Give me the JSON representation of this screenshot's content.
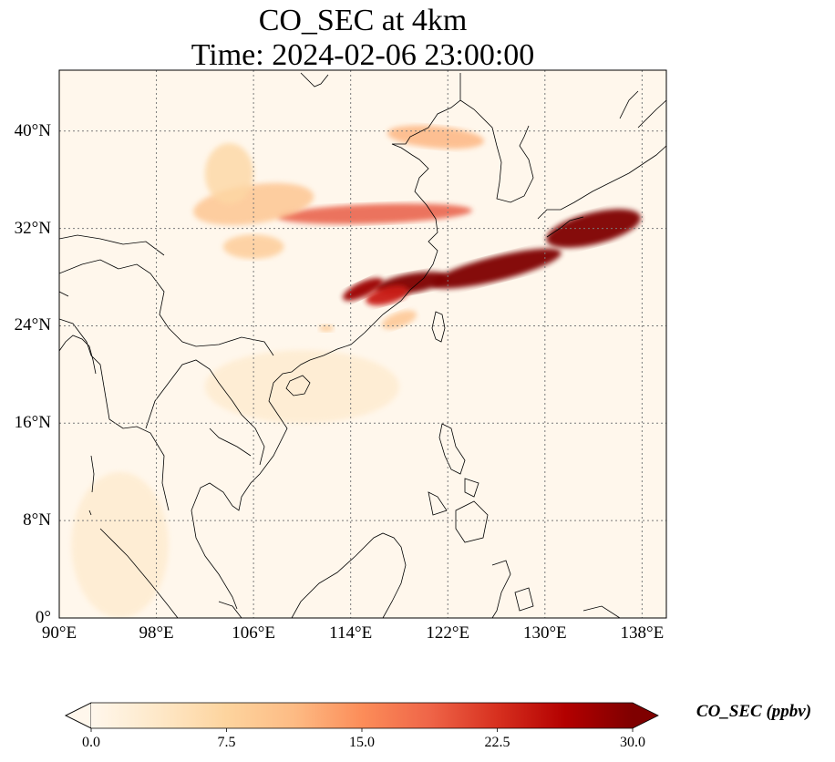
{
  "title": {
    "line1": "CO_SEC at 4km",
    "line2": "Time: 2024-02-06 23:00:00"
  },
  "map": {
    "extent": {
      "lon": [
        90,
        140
      ],
      "lat": [
        0,
        45
      ]
    },
    "lat_ticks": [
      {
        "value": 40,
        "label": "40°N"
      },
      {
        "value": 32,
        "label": "32°N"
      },
      {
        "value": 24,
        "label": "24°N"
      },
      {
        "value": 16,
        "label": "16°N"
      },
      {
        "value": 8,
        "label": "8°N"
      },
      {
        "value": 0,
        "label": "0°"
      }
    ],
    "lon_ticks": [
      {
        "value": 90,
        "label": "90°E"
      },
      {
        "value": 98,
        "label": "98°E"
      },
      {
        "value": 106,
        "label": "106°E"
      },
      {
        "value": 114,
        "label": "114°E"
      },
      {
        "value": 122,
        "label": "122°E"
      },
      {
        "value": 130,
        "label": "130°E"
      },
      {
        "value": 138,
        "label": "138°E"
      }
    ],
    "gridlines": true,
    "colormap": "OrRd",
    "plumes": [
      {
        "lon": 134,
        "lat": 32.0,
        "value": 30,
        "sx": 4.0,
        "sy": 1.3,
        "rot": -14
      },
      {
        "lon": 126,
        "lat": 28.7,
        "value": 30,
        "sx": 5.5,
        "sy": 1.0,
        "rot": -14
      },
      {
        "lon": 119,
        "lat": 27.5,
        "value": 30,
        "sx": 3.0,
        "sy": 0.8,
        "rot": -10
      },
      {
        "lon": 115,
        "lat": 27.0,
        "value": 28,
        "sx": 1.8,
        "sy": 0.6,
        "rot": -25
      },
      {
        "lon": 117,
        "lat": 26.5,
        "value": 24,
        "sx": 1.8,
        "sy": 0.7,
        "rot": -15
      },
      {
        "lon": 116,
        "lat": 33.2,
        "value": 20,
        "sx": 8.0,
        "sy": 0.8,
        "rot": -2
      },
      {
        "lon": 106,
        "lat": 34.0,
        "value": 10,
        "sx": 5.0,
        "sy": 1.6,
        "rot": -8
      },
      {
        "lon": 104,
        "lat": 36.5,
        "value": 7,
        "sx": 2.0,
        "sy": 2.5,
        "rot": 0
      },
      {
        "lon": 106,
        "lat": 30.5,
        "value": 9,
        "sx": 2.5,
        "sy": 1.0,
        "rot": 0
      },
      {
        "lon": 121,
        "lat": 39.5,
        "value": 12,
        "sx": 4.0,
        "sy": 0.9,
        "rot": 5
      },
      {
        "lon": 118,
        "lat": 24.5,
        "value": 10,
        "sx": 1.5,
        "sy": 0.6,
        "rot": -20
      },
      {
        "lon": 112,
        "lat": 23.8,
        "value": 9,
        "sx": 0.6,
        "sy": 0.3,
        "rot": 0
      },
      {
        "lon": 110,
        "lat": 19.0,
        "value": 3,
        "sx": 8.0,
        "sy": 3.0,
        "rot": 0
      },
      {
        "lon": 95,
        "lat": 6.0,
        "value": 3,
        "sx": 4.0,
        "sy": 6.0,
        "rot": 0
      }
    ]
  },
  "colorbar": {
    "label": "CO_SEC (ppbv)",
    "min": 0,
    "max": 30,
    "ticks": [
      {
        "value": 0,
        "label": "0.0"
      },
      {
        "value": 7.5,
        "label": "7.5"
      },
      {
        "value": 15,
        "label": "15.0"
      },
      {
        "value": 22.5,
        "label": "22.5"
      },
      {
        "value": 30,
        "label": "30.0"
      }
    ],
    "colors": [
      "#fff7ec",
      "#fee8c8",
      "#fdd49e",
      "#fdbb84",
      "#fc8d59",
      "#ef6548",
      "#d7301f",
      "#b30000",
      "#7f0000"
    ]
  }
}
